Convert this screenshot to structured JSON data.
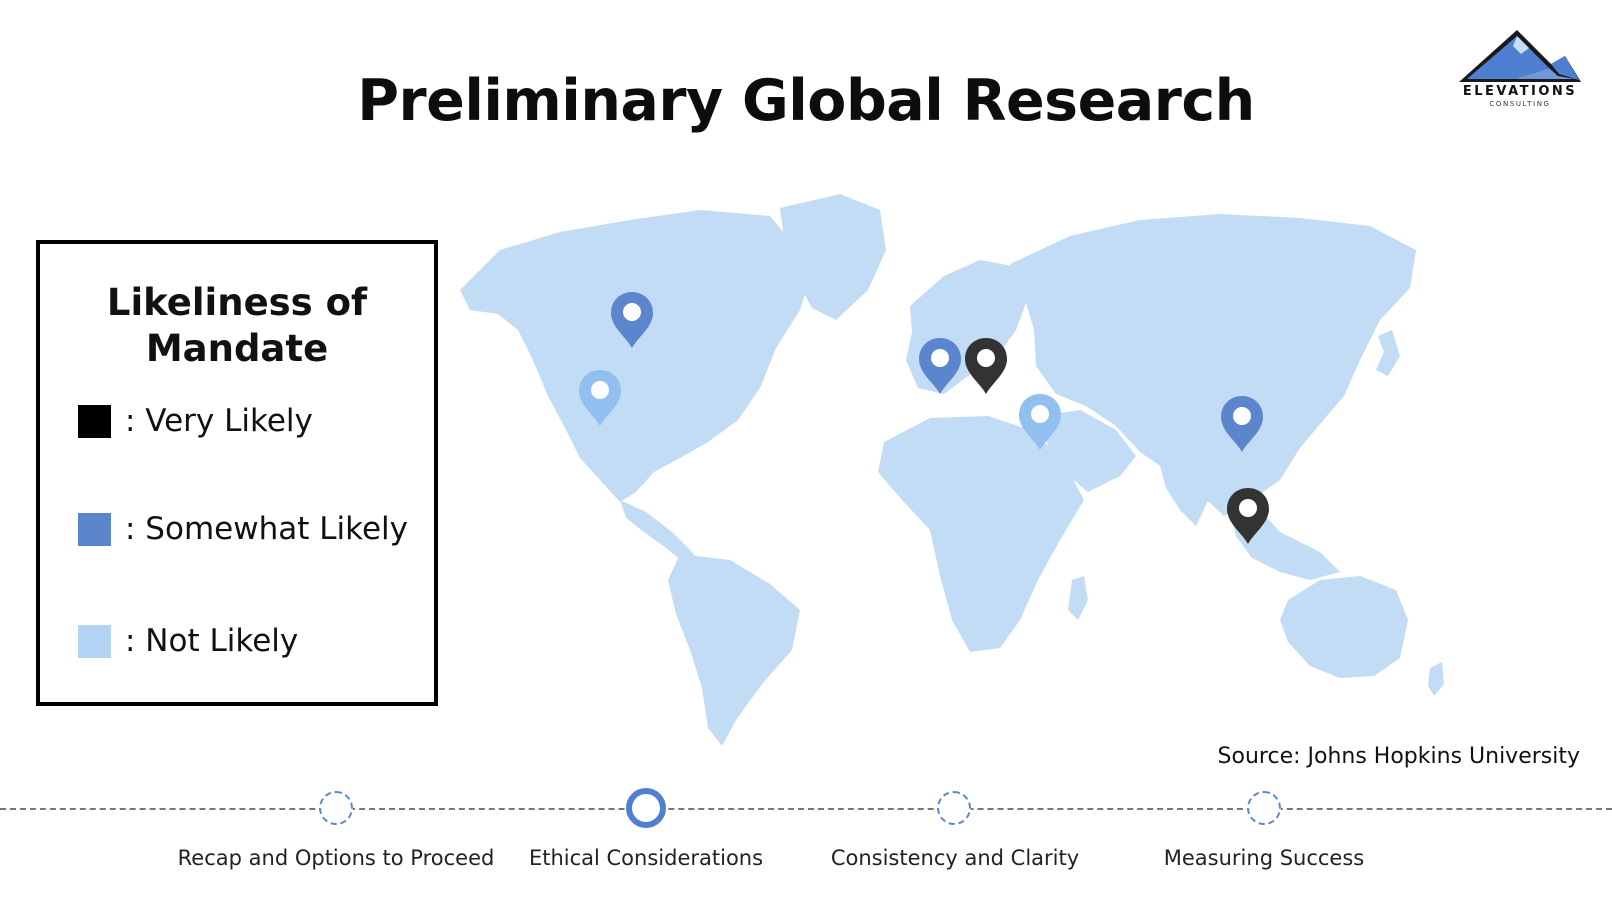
{
  "slide": {
    "title": "Preliminary Global Research",
    "source": "Source: Johns Hopkins University"
  },
  "logo": {
    "name": "ELEVATIONS",
    "subtitle": "CONSULTING",
    "icon": "mountain-logo-icon"
  },
  "legend": {
    "title_line1": "Likeliness of",
    "title_line2": "Mandate",
    "items": [
      {
        "label": ": Very Likely",
        "color": "#000000"
      },
      {
        "label": ": Somewhat Likely",
        "color": "#5b86cd"
      },
      {
        "label": ": Not Likely",
        "color": "#b3d4f4"
      }
    ]
  },
  "map": {
    "land_color": "#c2dcf5",
    "pins": [
      {
        "region": "Canada",
        "level": "Somewhat Likely",
        "color": "#5b86cd"
      },
      {
        "region": "Western United States",
        "level": "Not Likely",
        "color": "#90bff0"
      },
      {
        "region": "United Kingdom",
        "level": "Somewhat Likely",
        "color": "#5b86cd"
      },
      {
        "region": "Central Europe",
        "level": "Very Likely",
        "color": "#333333"
      },
      {
        "region": "Middle East",
        "level": "Not Likely",
        "color": "#90bff0"
      },
      {
        "region": "China",
        "level": "Somewhat Likely",
        "color": "#5b86cd"
      },
      {
        "region": "Southeast Asia",
        "level": "Very Likely",
        "color": "#333333"
      }
    ]
  },
  "timeline": {
    "steps": [
      {
        "label": "Recap and Options to Proceed",
        "active": false
      },
      {
        "label": "Ethical Considerations",
        "active": true
      },
      {
        "label": "Consistency and Clarity",
        "active": false
      },
      {
        "label": "Measuring Success",
        "active": false
      }
    ]
  }
}
